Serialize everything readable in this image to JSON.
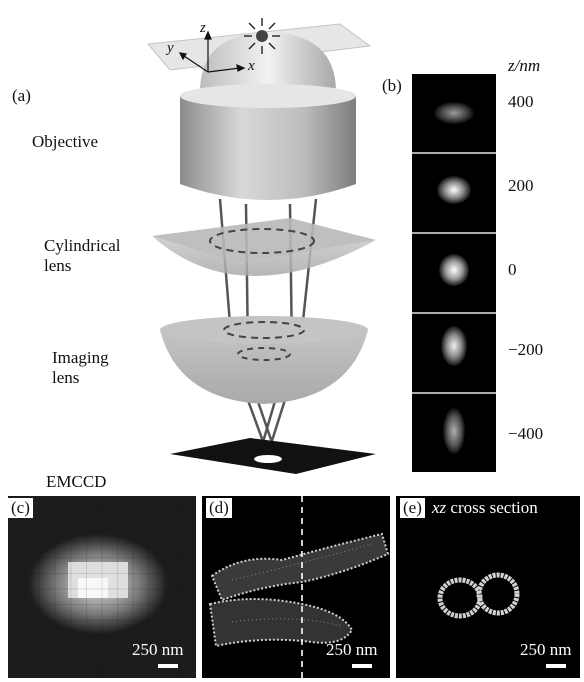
{
  "panels": {
    "a": {
      "letter": "(a)",
      "labels": {
        "objective": "Objective",
        "cylindrical": "Cylindrical\nlens",
        "imaging": "Imaging\nlens"
      },
      "axes": {
        "x": "x",
        "y": "y",
        "z": "z"
      }
    },
    "b": {
      "letter": "(b)",
      "z_header": "z/nm",
      "z_values": [
        "400",
        "200",
        "0",
        "−200",
        "−400"
      ]
    },
    "c": {
      "letter": "(c)",
      "title": "EMCCD",
      "scale": "250 nm"
    },
    "d": {
      "letter": "(d)",
      "scale": "250 nm"
    },
    "e": {
      "letter": "(e)",
      "title_italic": "xz",
      "title_rest": " cross section",
      "scale": "250 nm"
    }
  },
  "colors": {
    "panel_bg": "#000000",
    "lens_gray": "#9a9a9a",
    "scale_bar": "#ffffff"
  }
}
